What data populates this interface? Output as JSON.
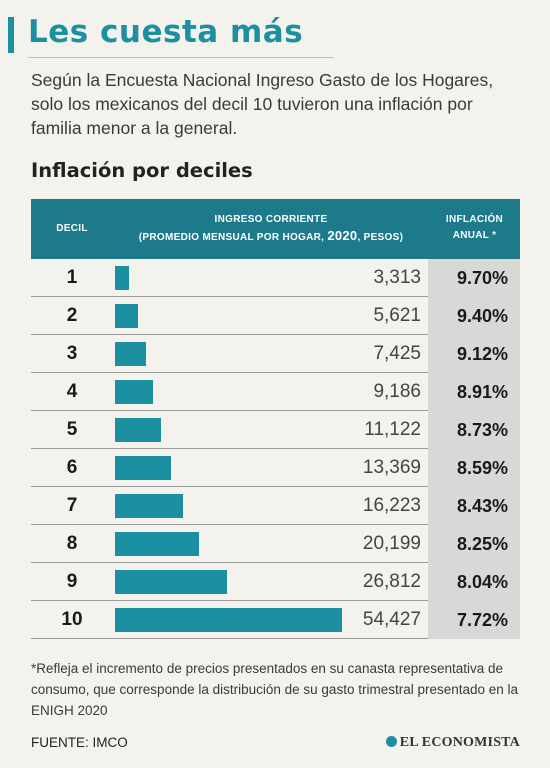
{
  "header": {
    "title": "Les cuesta más",
    "intro": "Según la Encuesta Nacional Ingreso Gasto de los Hogares, solo los mexicanos del decil 10 tuvieron una inflación por familia menor a la general.",
    "subtitle": "Inflación por deciles"
  },
  "table": {
    "col_decil": "Decil",
    "col_ingreso_line1": "Ingreso corriente",
    "col_ingreso_line2_pre": "(promedio mensual por hogar, ",
    "col_ingreso_year": "2020",
    "col_ingreso_line2_post": ", pesos)",
    "col_inflacion_line1": "Inflación",
    "col_inflacion_line2": "anual *"
  },
  "chart_data": {
    "type": "bar",
    "orientation": "horizontal",
    "categories": [
      "1",
      "2",
      "3",
      "4",
      "5",
      "6",
      "7",
      "8",
      "9",
      "10"
    ],
    "series": [
      {
        "values": [
          3313,
          5621,
          7425,
          9186,
          11122,
          13369,
          16223,
          20199,
          26812,
          54427
        ],
        "labels": [
          "3,313",
          "5,621",
          "7,425",
          "9,186",
          "11,122",
          "13,369",
          "16,223",
          "20,199",
          "26,812",
          "54,427"
        ]
      }
    ],
    "inflation": [
      "9.70%",
      "9.40%",
      "9.12%",
      "8.91%",
      "8.73%",
      "8.59%",
      "8.43%",
      "8.25%",
      "8.04%",
      "7.72%"
    ],
    "xlim": [
      0,
      54427
    ],
    "title": "Inflación por deciles"
  },
  "footer": {
    "note": "*Refleja el incremento de precios presentados en su canasta representativa de consumo, que corresponde  la distribución de su gasto trimestral presentado en la ENIGH 2020",
    "source": "FUENTE: IMCO",
    "brand": "EL ECONOMISTA"
  },
  "colors": {
    "accent": "#1c8fa0",
    "header_bg": "#1c7a8b",
    "inflation_bg": "#d8d8d6",
    "page_bg": "#f4f2ec"
  }
}
